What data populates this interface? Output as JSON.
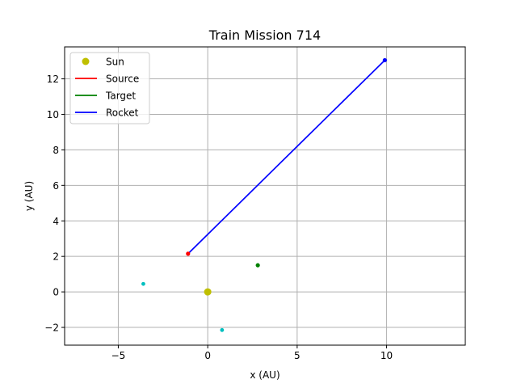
{
  "chart_data": {
    "type": "scatter",
    "title": "Train Mission 714",
    "xlabel": "x (AU)",
    "ylabel": "y (AU)",
    "xlim": [
      -8.0,
      14.4
    ],
    "ylim": [
      -3.0,
      13.8
    ],
    "xticks": [
      -5,
      0,
      5,
      10
    ],
    "yticks": [
      -2,
      0,
      2,
      4,
      6,
      8,
      10,
      12
    ],
    "xtick_labels": [
      "−5",
      "0",
      "5",
      "10"
    ],
    "ytick_labels": [
      "−2",
      "0",
      "2",
      "4",
      "6",
      "8",
      "10",
      "12"
    ],
    "grid": true,
    "legend_position": "top-left",
    "legend": [
      {
        "label": "Sun",
        "color": "#bfbf00",
        "marker": "circle"
      },
      {
        "label": "Source",
        "color": "#ff0000",
        "marker": "line"
      },
      {
        "label": "Target",
        "color": "#008000",
        "marker": "line"
      },
      {
        "label": "Rocket",
        "color": "#0000ff",
        "marker": "line"
      }
    ],
    "series": [
      {
        "name": "Sun",
        "color": "#bfbf00",
        "kind": "point",
        "points": [
          [
            0.0,
            0.0
          ]
        ]
      },
      {
        "name": "Source",
        "color": "#ff0000",
        "kind": "point",
        "points": [
          [
            -1.1,
            2.15
          ]
        ]
      },
      {
        "name": "Target",
        "color": "#008000",
        "kind": "point",
        "points": [
          [
            2.8,
            1.5
          ]
        ]
      },
      {
        "name": "Rocket",
        "color": "#0000ff",
        "kind": "line",
        "points": [
          [
            -1.1,
            2.15
          ],
          [
            9.9,
            13.05
          ]
        ]
      }
    ],
    "extra_points": [
      {
        "color": "#00bfbf",
        "points": [
          [
            -3.6,
            0.45
          ],
          [
            0.8,
            -2.15
          ]
        ]
      }
    ]
  }
}
